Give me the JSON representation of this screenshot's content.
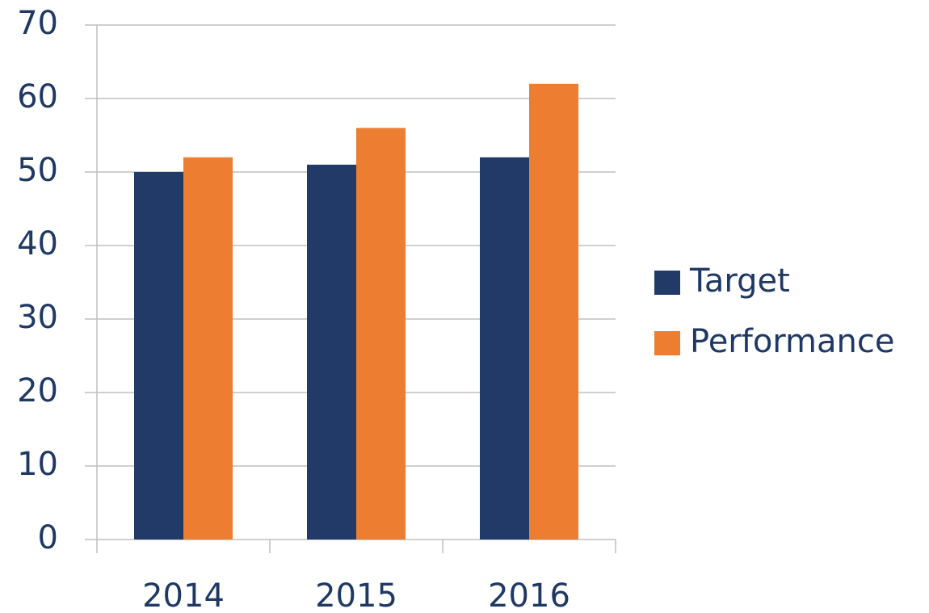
{
  "chart_data": {
    "type": "bar",
    "categories": [
      "2014",
      "2015",
      "2016"
    ],
    "series": [
      {
        "name": "Target",
        "color": "#213a68",
        "values": [
          50,
          51,
          52
        ]
      },
      {
        "name": "Performance",
        "color": "#ed7d31",
        "values": [
          52,
          56,
          62
        ]
      }
    ],
    "ylim": [
      0,
      70
    ],
    "yticks": [
      0,
      10,
      20,
      30,
      40,
      50,
      60,
      70
    ],
    "grid": true,
    "legend": "right"
  }
}
